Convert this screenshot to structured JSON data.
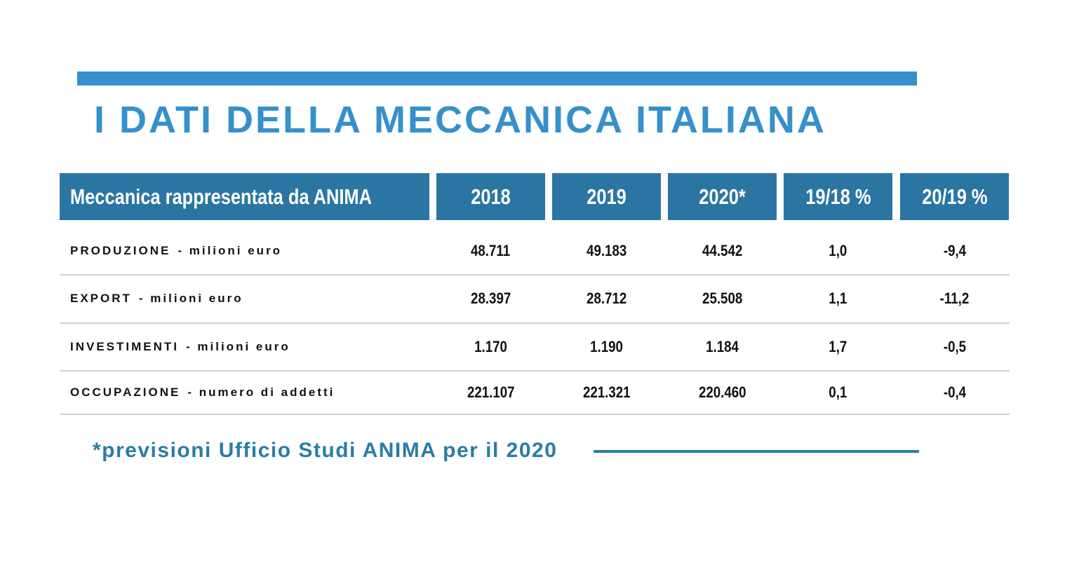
{
  "title": "I DATI DELLA MECCANICA ITALIANA",
  "footnote": "*previsioni Ufficio Studi ANIMA per il 2020",
  "colors": {
    "title": "#3590cc",
    "header": "#2b75a3",
    "footnote": "#2a7ca8"
  },
  "chart_data": {
    "type": "table",
    "title": "I DATI DELLA MECCANICA ITALIANA",
    "columns": [
      "Meccanica rappresentata da ANIMA",
      "2018",
      "2019",
      "2020*",
      "19/18 %",
      "20/19 %"
    ],
    "rows": [
      {
        "name": "PRODUZIONE",
        "unit": "- milioni euro",
        "values": [
          "48.711",
          "49.183",
          "44.542",
          "1,0",
          "-9,4"
        ]
      },
      {
        "name": "EXPORT",
        "unit": "- milioni euro",
        "values": [
          "28.397",
          "28.712",
          "25.508",
          "1,1",
          "-11,2"
        ]
      },
      {
        "name": "INVESTIMENTI",
        "unit": "- milioni euro",
        "values": [
          "1.170",
          "1.190",
          "1.184",
          "1,7",
          "-0,5"
        ]
      },
      {
        "name": "OCCUPAZIONE",
        "unit": "- numero di addetti",
        "values": [
          "221.107",
          "221.321",
          "220.460",
          "0,1",
          "-0,4"
        ]
      }
    ]
  }
}
